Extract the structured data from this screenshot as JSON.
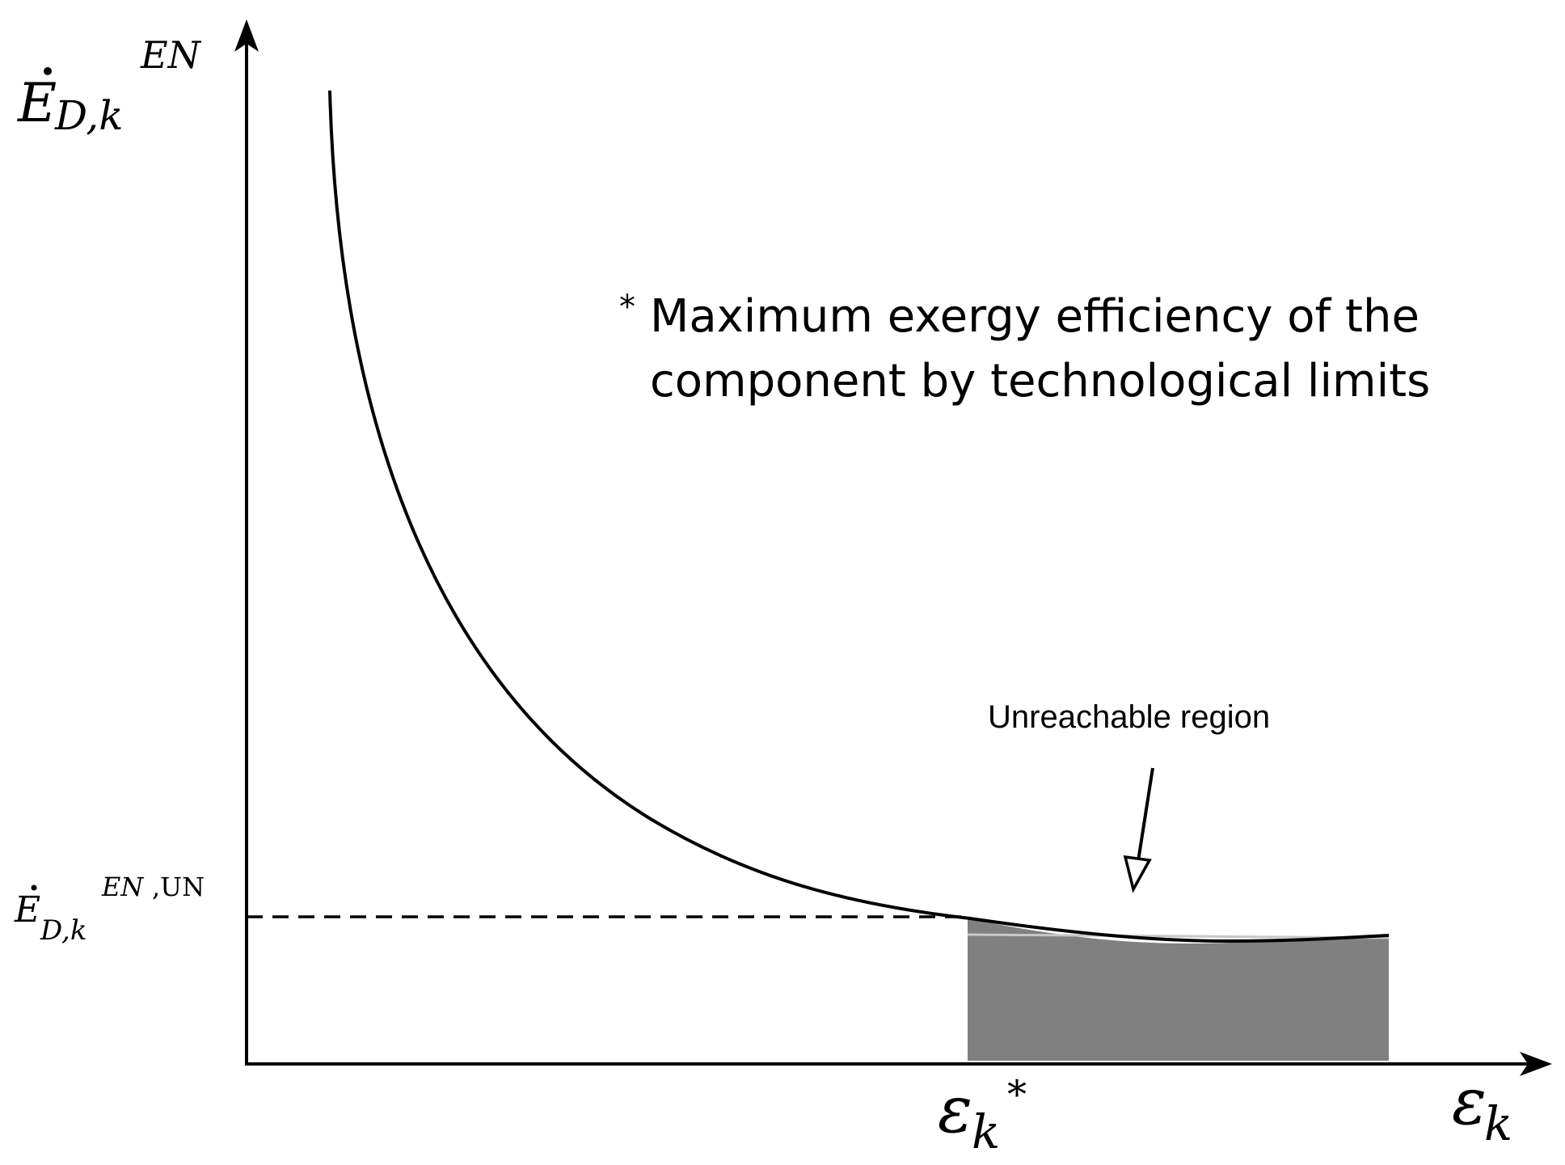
{
  "y_axis": {
    "symbol": "E",
    "subscript": "D,k",
    "superscript": "EN"
  },
  "x_axis": {
    "symbol": "ε",
    "subscript": "k"
  },
  "marked_level": {
    "symbol": "E",
    "subscript": "D,k",
    "superscript_italic": "EN",
    "superscript_rest": ",UN"
  },
  "marked_efficiency": {
    "symbol": "ε",
    "subscript": "k",
    "superscript": "*"
  },
  "footnote": {
    "marker": "*",
    "line1": "Maximum exergy efficiency of the",
    "line2": "component by technological limits"
  },
  "region_annotation": {
    "label": "Unreachable region"
  },
  "colors": {
    "axes": "#000000",
    "curve": "#000000",
    "region_fill": "#808080",
    "region_highlight": "#c8c8c8",
    "background": "#ffffff"
  }
}
